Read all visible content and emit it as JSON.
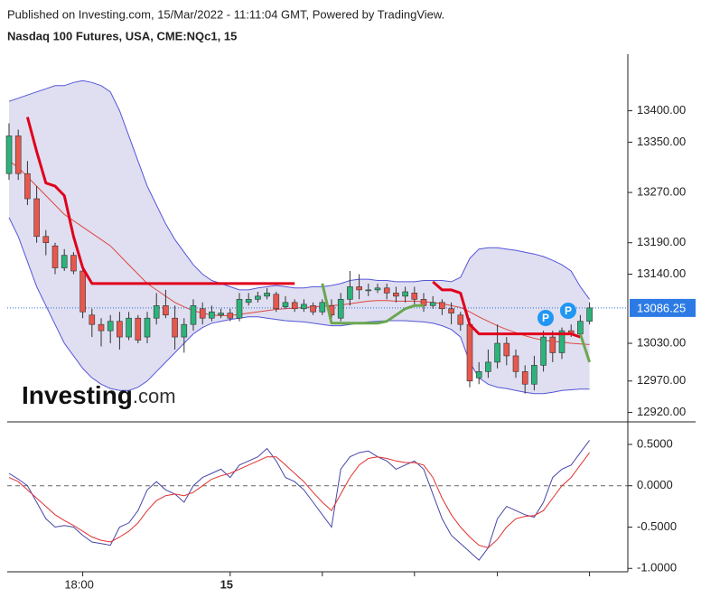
{
  "header": {
    "published": "Published on Investing.com, 15/Mar/2022 - 11:11:04 GMT, Powered by TradingView.",
    "instrument": "Nasdaq 100 Futures, USA, CME:NQc1, 15",
    "logo": "Investing",
    "logo_suffix": ".com"
  },
  "markers": [
    {
      "label": "P"
    },
    {
      "label": "P"
    }
  ],
  "chart_data": [
    {
      "type": "candlestick",
      "categories": [
        null,
        null,
        null,
        null,
        null,
        null,
        null,
        null,
        "18:00",
        null,
        null,
        null,
        null,
        null,
        null,
        null,
        null,
        null,
        null,
        null,
        null,
        null,
        null,
        null,
        "15",
        null,
        null,
        null,
        null,
        null,
        null,
        null,
        null,
        null,
        null,
        null,
        null,
        null,
        null,
        null,
        null,
        null,
        null,
        null,
        null,
        null,
        null,
        null,
        null,
        null,
        null,
        null,
        null,
        null,
        null,
        null,
        null,
        null,
        null,
        null,
        null,
        null,
        null,
        null
      ],
      "xticks": [
        8,
        24,
        34,
        44,
        53,
        63
      ],
      "open": [
        13300,
        13360,
        13300,
        13260,
        13200,
        13185,
        13150,
        13170,
        13145,
        13075,
        13060,
        13050,
        13065,
        13040,
        13070,
        13040,
        13070,
        13090,
        13070,
        13040,
        13060,
        13085,
        13070,
        13075,
        13078,
        13070,
        13095,
        13100,
        13105,
        13108,
        13088,
        13095,
        13085,
        13090,
        13080,
        13090,
        13070,
        13100,
        13120,
        13115,
        13115,
        13118,
        13110,
        13105,
        13110,
        13100,
        13090,
        13095,
        13085,
        13075,
        13060,
        12975,
        12985,
        13000,
        13030,
        13010,
        12985,
        12965,
        12995,
        13040,
        13015,
        13050,
        13045,
        13065
      ],
      "high": [
        13380,
        13370,
        13320,
        13280,
        13210,
        13190,
        13180,
        13175,
        13150,
        13085,
        13070,
        13075,
        13080,
        13080,
        13075,
        13080,
        13110,
        13115,
        13090,
        13070,
        13100,
        13095,
        13090,
        13085,
        13085,
        13110,
        13110,
        13112,
        13118,
        13112,
        13105,
        13100,
        13100,
        13095,
        13100,
        13100,
        13110,
        13145,
        13140,
        13125,
        13125,
        13125,
        13120,
        13120,
        13120,
        13110,
        13105,
        13100,
        13095,
        13080,
        13070,
        13000,
        13020,
        13060,
        13040,
        13020,
        12995,
        13010,
        13050,
        13050,
        13055,
        13060,
        13075,
        13095
      ],
      "low": [
        13290,
        13290,
        13250,
        13190,
        13170,
        13140,
        13145,
        13140,
        13070,
        13040,
        13025,
        13030,
        13020,
        13035,
        13030,
        13030,
        13060,
        13070,
        13020,
        13015,
        13050,
        13060,
        13065,
        13070,
        13065,
        13065,
        13090,
        13095,
        13100,
        13080,
        13085,
        13080,
        13080,
        13075,
        13075,
        13070,
        13065,
        13090,
        13100,
        13105,
        13110,
        13100,
        13095,
        13095,
        13090,
        13080,
        13085,
        13075,
        13060,
        13050,
        12960,
        12965,
        12975,
        12990,
        12995,
        12975,
        12950,
        12955,
        12985,
        13000,
        13005,
        13040,
        13040,
        13060
      ],
      "close": [
        13360,
        13300,
        13260,
        13200,
        13190,
        13150,
        13170,
        13145,
        13080,
        13060,
        13050,
        13065,
        13040,
        13070,
        13035,
        13070,
        13090,
        13075,
        13040,
        13060,
        13090,
        13070,
        13080,
        13078,
        13070,
        13100,
        13100,
        13105,
        13110,
        13085,
        13095,
        13085,
        13092,
        13080,
        13095,
        13075,
        13100,
        13120,
        13115,
        13115,
        13118,
        13110,
        13105,
        13112,
        13100,
        13090,
        13095,
        13085,
        13078,
        13060,
        12970,
        12985,
        13000,
        13030,
        13010,
        12985,
        12965,
        12995,
        13040,
        13015,
        13050,
        13045,
        13065,
        13086.25
      ],
      "up_color": "#2db37a",
      "down_color": "#e8574d",
      "band_fill": "#dcdcf0",
      "series": [
        {
          "color": "#5555d8",
          "role": "band",
          "values": [
            13415,
            13420,
            13425,
            13430,
            13435,
            13440,
            13440,
            13445,
            13448,
            13445,
            13440,
            13430,
            13400,
            13360,
            13320,
            13280,
            13250,
            13220,
            13195,
            13175,
            13155,
            13140,
            13130,
            13125,
            13120,
            13115,
            13115,
            13118,
            13120,
            13122,
            13120,
            13118,
            13118,
            13120,
            13120,
            13122,
            13125,
            13130,
            13132,
            13132,
            13130,
            13130,
            13128,
            13128,
            13128,
            13130,
            13130,
            13130,
            13128,
            13135,
            13165,
            13180,
            13182,
            13182,
            13180,
            13178,
            13175,
            13172,
            13168,
            13162,
            13155,
            13145,
            13120,
            13100
          ]
        },
        {
          "color": "#5555d8",
          "role": "band",
          "values": [
            13230,
            13200,
            13160,
            13120,
            13090,
            13060,
            13030,
            13010,
            12990,
            12975,
            12965,
            12958,
            12955,
            12955,
            12960,
            12970,
            12985,
            13000,
            13015,
            13030,
            13045,
            13055,
            13062,
            13065,
            13068,
            13070,
            13072,
            13072,
            13070,
            13068,
            13066,
            13065,
            13064,
            13062,
            13060,
            13058,
            13058,
            13060,
            13062,
            13064,
            13065,
            13066,
            13066,
            13066,
            13065,
            13064,
            13062,
            13058,
            13052,
            13040,
            13000,
            12975,
            12965,
            12960,
            12958,
            12955,
            12952,
            12950,
            12950,
            12952,
            12955,
            12956,
            12957,
            12957
          ]
        },
        {
          "color": "#e0463e",
          "width": 1,
          "values": [
            13320,
            13310,
            13295,
            13280,
            13265,
            13250,
            13235,
            13225,
            13215,
            13205,
            13195,
            13185,
            13170,
            13155,
            13140,
            13125,
            13115,
            13105,
            13095,
            13088,
            13082,
            13078,
            13075,
            13074,
            13074,
            13076,
            13078,
            13080,
            13082,
            13084,
            13085,
            13086,
            13087,
            13088,
            13089,
            13090,
            13091,
            13093,
            13095,
            13097,
            13098,
            13098,
            13097,
            13097,
            13097,
            13096,
            13095,
            13093,
            13090,
            13087,
            13080,
            13072,
            13065,
            13058,
            13052,
            13047,
            13042,
            13038,
            13035,
            13033,
            13032,
            13030,
            13029,
            13028
          ]
        },
        {
          "color": "#e0001b",
          "width": 3,
          "values": [
            null,
            null,
            13390,
            13335,
            13285,
            13280,
            13265,
            13200,
            13150,
            13125,
            13125,
            13125,
            13125,
            13125,
            13125,
            13125,
            13125,
            13125,
            13125,
            13125,
            13125,
            13125,
            13125,
            13125,
            13125,
            13125,
            13125,
            13125,
            13125,
            13125,
            13125,
            13125,
            null,
            null,
            null,
            null,
            null,
            null,
            null,
            null,
            null,
            null,
            null,
            null,
            null,
            null,
            13128,
            13115,
            13115,
            13110,
            13060,
            13045,
            13045,
            13045,
            13045,
            13045,
            13045,
            13045,
            13045,
            13045,
            13045,
            13045,
            13040,
            null
          ]
        },
        {
          "color": "#6aa84f",
          "width": 3,
          "values": [
            null,
            null,
            null,
            null,
            null,
            null,
            null,
            null,
            null,
            null,
            null,
            null,
            null,
            null,
            null,
            null,
            null,
            null,
            null,
            null,
            null,
            null,
            null,
            null,
            null,
            null,
            null,
            null,
            null,
            null,
            null,
            null,
            null,
            null,
            13125,
            13062,
            13062,
            13062,
            13062,
            13062,
            13062,
            13065,
            13075,
            13085,
            13090,
            13090,
            null,
            null,
            null,
            null,
            null,
            null,
            null,
            null,
            null,
            null,
            null,
            null,
            null,
            null,
            null,
            null,
            13045,
            13000
          ]
        }
      ],
      "current_price": 13086.25,
      "ylim": [
        12905,
        13490
      ],
      "yticks": [
        {
          "value": 13400,
          "label": "13400.00"
        },
        {
          "value": 13350,
          "label": "13350.00"
        },
        {
          "value": 13270,
          "label": "13270.00"
        },
        {
          "value": 13190,
          "label": "13190.00"
        },
        {
          "value": 13140,
          "label": "13140.00"
        },
        {
          "value": 13030,
          "label": "13030.00"
        },
        {
          "value": 12970,
          "label": "12970.00"
        },
        {
          "value": 12920,
          "label": "12920.00"
        }
      ]
    },
    {
      "type": "line",
      "series": [
        {
          "color": "#4646a8",
          "values": [
            0.15,
            0.08,
            0.0,
            -0.2,
            -0.4,
            -0.5,
            -0.48,
            -0.5,
            -0.6,
            -0.68,
            -0.7,
            -0.72,
            -0.5,
            -0.45,
            -0.3,
            -0.05,
            0.05,
            -0.05,
            -0.1,
            -0.2,
            0.0,
            0.1,
            0.15,
            0.2,
            0.1,
            0.25,
            0.3,
            0.35,
            0.45,
            0.3,
            0.1,
            0.05,
            -0.05,
            -0.2,
            -0.35,
            -0.5,
            0.2,
            0.35,
            0.4,
            0.42,
            0.35,
            0.3,
            0.2,
            0.25,
            0.3,
            0.2,
            -0.1,
            -0.4,
            -0.6,
            -0.7,
            -0.8,
            -0.9,
            -0.75,
            -0.4,
            -0.25,
            -0.3,
            -0.35,
            -0.38,
            -0.2,
            0.1,
            0.2,
            0.25,
            0.4,
            0.55
          ]
        },
        {
          "color": "#e03030",
          "values": [
            0.1,
            0.05,
            -0.05,
            -0.15,
            -0.25,
            -0.35,
            -0.42,
            -0.48,
            -0.55,
            -0.62,
            -0.66,
            -0.68,
            -0.62,
            -0.55,
            -0.45,
            -0.3,
            -0.18,
            -0.12,
            -0.1,
            -0.12,
            -0.08,
            0.0,
            0.08,
            0.12,
            0.15,
            0.2,
            0.25,
            0.3,
            0.35,
            0.35,
            0.25,
            0.15,
            0.05,
            -0.08,
            -0.2,
            -0.3,
            -0.1,
            0.1,
            0.25,
            0.33,
            0.35,
            0.33,
            0.3,
            0.28,
            0.28,
            0.25,
            0.1,
            -0.15,
            -0.35,
            -0.5,
            -0.62,
            -0.72,
            -0.75,
            -0.65,
            -0.5,
            -0.4,
            -0.37,
            -0.36,
            -0.3,
            -0.15,
            0.0,
            0.1,
            0.25,
            0.4
          ]
        }
      ],
      "zero_line": 0,
      "ylim": [
        -1.03,
        0.74
      ],
      "yticks": [
        {
          "value": 0.5,
          "label": "0.5000"
        },
        {
          "value": 0,
          "label": "0.0000"
        },
        {
          "value": -0.5,
          "label": "-0.5000"
        },
        {
          "value": -1,
          "label": "-1.0000"
        }
      ]
    }
  ]
}
